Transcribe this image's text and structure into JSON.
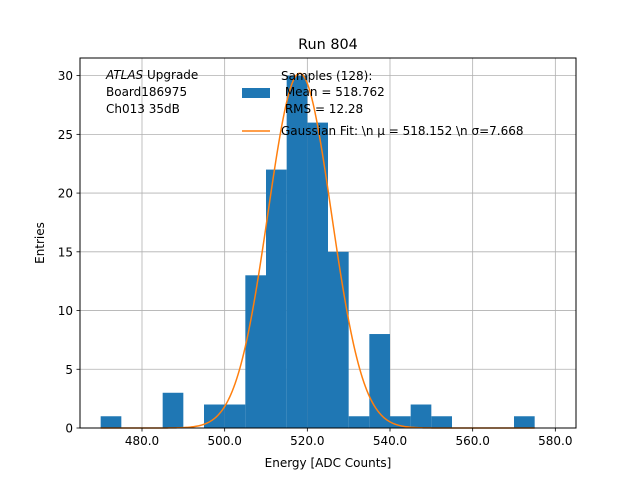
{
  "chart_data": {
    "type": "bar",
    "title": "Run 804",
    "xlabel": "Energy [ADC Counts]",
    "ylabel": "Entries",
    "xlim": [
      465,
      585
    ],
    "ylim": [
      0,
      31.5
    ],
    "grid": true,
    "x_ticks": [
      480,
      500,
      520,
      540,
      560,
      580
    ],
    "x_tick_labels": [
      "480.0",
      "500.0",
      "520.0",
      "540.0",
      "560.0",
      "580.0"
    ],
    "y_ticks": [
      0,
      5,
      10,
      15,
      20,
      25,
      30
    ],
    "y_tick_labels": [
      "0",
      "5",
      "10",
      "15",
      "20",
      "25",
      "30"
    ],
    "annotation": {
      "atlas_label": "ATLAS",
      "line1_suffix": " Upgrade",
      "line2": "Board186975",
      "line3": "Ch013 35dB"
    },
    "legend": {
      "placement": "top-center",
      "histogram_label_lines": [
        "Samples (128):",
        " Mean = 518.762",
        " RMS = 12.28"
      ],
      "fit_label": "Gaussian Fit: \\n μ = 518.152 \\n σ=7.668"
    },
    "series": [
      {
        "kind": "histogram",
        "color": "#1f77b4",
        "bins": [
          {
            "x0": 470,
            "x1": 475,
            "count": 1
          },
          {
            "x0": 475,
            "x1": 480,
            "count": 0
          },
          {
            "x0": 480,
            "x1": 485,
            "count": 0
          },
          {
            "x0": 485,
            "x1": 490,
            "count": 3
          },
          {
            "x0": 490,
            "x1": 495,
            "count": 0
          },
          {
            "x0": 495,
            "x1": 500,
            "count": 2
          },
          {
            "x0": 500,
            "x1": 505,
            "count": 2
          },
          {
            "x0": 505,
            "x1": 510,
            "count": 13
          },
          {
            "x0": 510,
            "x1": 515,
            "count": 22
          },
          {
            "x0": 515,
            "x1": 520,
            "count": 30
          },
          {
            "x0": 520,
            "x1": 525,
            "count": 26
          },
          {
            "x0": 525,
            "x1": 530,
            "count": 15
          },
          {
            "x0": 530,
            "x1": 535,
            "count": 1
          },
          {
            "x0": 535,
            "x1": 540,
            "count": 8
          },
          {
            "x0": 540,
            "x1": 545,
            "count": 1
          },
          {
            "x0": 545,
            "x1": 550,
            "count": 2
          },
          {
            "x0": 550,
            "x1": 555,
            "count": 1
          },
          {
            "x0": 555,
            "x1": 560,
            "count": 0
          },
          {
            "x0": 560,
            "x1": 565,
            "count": 0
          },
          {
            "x0": 565,
            "x1": 570,
            "count": 0
          },
          {
            "x0": 570,
            "x1": 575,
            "count": 1
          }
        ]
      },
      {
        "kind": "gaussian",
        "color": "#ff7f0e",
        "mu": 518.152,
        "sigma": 7.668,
        "amplitude": 30.2,
        "x_range": [
          470,
          575
        ]
      }
    ]
  }
}
